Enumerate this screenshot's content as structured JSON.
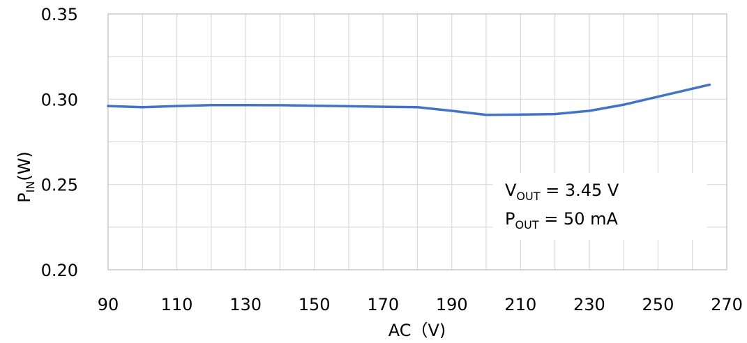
{
  "chart_data": {
    "type": "line",
    "xlabel": "AC（V)",
    "ylabel": {
      "main": "P",
      "sub": "IN",
      "unit": "(W)"
    },
    "xlim": [
      90,
      270
    ],
    "ylim": [
      0.2,
      0.35
    ],
    "x_ticks": [
      90,
      110,
      130,
      150,
      170,
      190,
      210,
      230,
      250,
      270
    ],
    "x_tick_labels": [
      "90",
      "110",
      "130",
      "150",
      "170",
      "190",
      "210",
      "230",
      "250",
      "270"
    ],
    "y_ticks": [
      0.2,
      0.25,
      0.3,
      0.35
    ],
    "y_tick_labels": [
      "0.20",
      "0.25",
      "0.30",
      "0.35"
    ],
    "x_minor_step": 10,
    "y_minor_step": 0.025,
    "grid": true,
    "series": [
      {
        "color": "#4472c4",
        "x": [
          90,
          100,
          110,
          120,
          130,
          140,
          150,
          160,
          170,
          180,
          190,
          200,
          210,
          220,
          230,
          240,
          250,
          265
        ],
        "y": [
          0.296,
          0.2953,
          0.296,
          0.2966,
          0.2966,
          0.2965,
          0.2962,
          0.2959,
          0.2956,
          0.2953,
          0.2932,
          0.2908,
          0.291,
          0.2913,
          0.2932,
          0.2968,
          0.3015,
          0.3085
        ]
      }
    ],
    "annotations": [
      {
        "main": "V",
        "sub": "OUT",
        "rest": " = 3.45 V"
      },
      {
        "main": "P",
        "sub": "OUT",
        "rest": " = 50 mA"
      }
    ]
  }
}
